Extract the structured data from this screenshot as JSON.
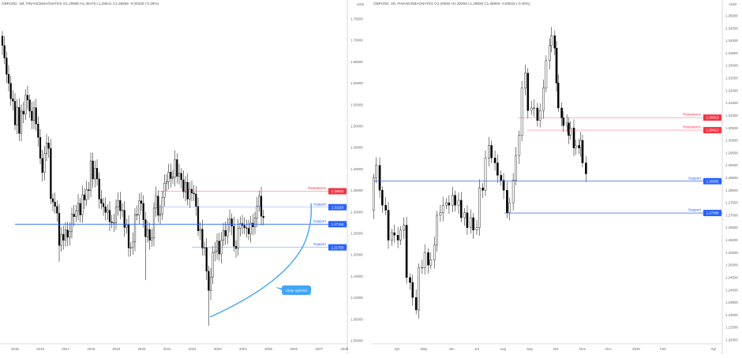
{
  "colors": {
    "up_body": "#ffffff",
    "down_body": "#000000",
    "wick": "#000000",
    "support": "#2962ff",
    "resistance": "#f23645",
    "callout": "#42a5f5",
    "axis_line": "#d0d0d0"
  },
  "chart_data": [
    {
      "type": "candlestick",
      "header": "GBPUSD, 1M, FINANCEMAGNATES  O1.29885  H1.30475  L1.28541  C1.28655  -0.00329 (-0.26%)",
      "currency_label": "USD",
      "timeframe": "monthly",
      "first_month": "2014-07",
      "first_open": 1.71,
      "closes": [
        1.688,
        1.659,
        1.621,
        1.6,
        1.564,
        1.558,
        1.503,
        1.544,
        1.483,
        1.535,
        1.528,
        1.572,
        1.561,
        1.535,
        1.513,
        1.543,
        1.505,
        1.474,
        1.425,
        1.392,
        1.436,
        1.461,
        1.448,
        1.331,
        1.323,
        1.313,
        1.297,
        1.222,
        1.248,
        1.234,
        1.258,
        1.241,
        1.255,
        1.295,
        1.289,
        1.302,
        1.32,
        1.293,
        1.34,
        1.328,
        1.352,
        1.35,
        1.419,
        1.377,
        1.402,
        1.377,
        1.33,
        1.32,
        1.312,
        1.299,
        1.304,
        1.277,
        1.275,
        1.275,
        1.311,
        1.327,
        1.303,
        1.304,
        1.264,
        1.27,
        1.216,
        1.217,
        1.23,
        1.294,
        1.293,
        1.326,
        1.32,
        1.282,
        1.242,
        1.259,
        1.234,
        1.24,
        1.309,
        1.337,
        1.292,
        1.295,
        1.334,
        1.367,
        1.37,
        1.393,
        1.378,
        1.381,
        1.422,
        1.383,
        1.39,
        1.375,
        1.347,
        1.369,
        1.33,
        1.353,
        1.344,
        1.342,
        1.313,
        1.256,
        1.26,
        1.216,
        1.217,
        1.162,
        1.117,
        1.148,
        1.205,
        1.209,
        1.232,
        1.202,
        1.234,
        1.257,
        1.244,
        1.271,
        1.284,
        1.267,
        1.22,
        1.215,
        1.262,
        1.273,
        1.269,
        1.263,
        1.262,
        1.249,
        1.274,
        1.265,
        1.286,
        1.313,
        1.337,
        1.29,
        1.2866
      ],
      "extreme_lows": {
        "2016-10": 1.184,
        "2020-03": 1.141,
        "2022-09": 1.035
      },
      "y_range": [
        1.0,
        1.75
      ],
      "y_ticks": [
        "1.75000",
        "1.70000",
        "1.65000",
        "1.60000",
        "1.55000",
        "1.50000",
        "1.45000",
        "1.40000",
        "1.35000",
        "1.30000",
        "1.25000",
        "1.20000",
        "1.15000",
        "1.10000",
        "1.05000",
        "1.00000"
      ],
      "x_ticks": [
        "2015",
        "2016",
        "2017",
        "2018",
        "2019",
        "2020",
        "2021",
        "2022",
        "2023",
        "2024",
        "2025",
        "2026",
        "2027",
        "2028"
      ],
      "levels": [
        {
          "kind": "resistance",
          "label": "Resistance",
          "price": 1.34832,
          "tag": "1.34832",
          "from": "2020-09"
        },
        {
          "kind": "support",
          "label": "Support",
          "price": 1.3111,
          "tag": "1.31110",
          "from": "2020-09"
        },
        {
          "kind": "support",
          "label": "Support",
          "price": 1.2715,
          "tag": "1.27150",
          "from": "2015-01"
        },
        {
          "kind": "support",
          "label": "Support",
          "price": 1.2175,
          "tag": "1.21750",
          "from": "2022-01"
        }
      ],
      "annotation": "Clear uptrend"
    },
    {
      "type": "candlestick",
      "header": "GBPUSD, 1D, FINANCEMAGNATES  O1.29094  H1.29259  L1.28558  C1.28655  -0.00516 (-0.40%)",
      "currency_label": "USD",
      "timeframe": "daily",
      "year": 2024,
      "first_open": 1.272,
      "points": [
        [
          "03-05",
          1.285
        ],
        [
          "03-08",
          1.29
        ],
        [
          "03-12",
          1.28
        ],
        [
          "03-15",
          1.274
        ],
        [
          "03-19",
          1.272
        ],
        [
          "03-22",
          1.26
        ],
        [
          "03-26",
          1.263
        ],
        [
          "03-29",
          1.262
        ],
        [
          "04-02",
          1.26
        ],
        [
          "04-05",
          1.264
        ],
        [
          "04-09",
          1.266
        ],
        [
          "04-12",
          1.245
        ],
        [
          "04-16",
          1.243
        ],
        [
          "04-19",
          1.237
        ],
        [
          "04-23",
          1.232
        ],
        [
          "04-26",
          1.249
        ],
        [
          "04-30",
          1.249
        ],
        [
          "05-03",
          1.255
        ],
        [
          "05-07",
          1.25
        ],
        [
          "05-10",
          1.252
        ],
        [
          "05-14",
          1.258
        ],
        [
          "05-17",
          1.27
        ],
        [
          "05-21",
          1.271
        ],
        [
          "05-24",
          1.274
        ],
        [
          "05-28",
          1.275
        ],
        [
          "05-31",
          1.274
        ],
        [
          "06-04",
          1.278
        ],
        [
          "06-07",
          1.274
        ],
        [
          "06-11",
          1.276
        ],
        [
          "06-14",
          1.269
        ],
        [
          "06-18",
          1.271
        ],
        [
          "06-21",
          1.265
        ],
        [
          "06-25",
          1.269
        ],
        [
          "06-28",
          1.264
        ],
        [
          "07-02",
          1.265
        ],
        [
          "07-05",
          1.281
        ],
        [
          "07-09",
          1.28
        ],
        [
          "07-12",
          1.293
        ],
        [
          "07-16",
          1.298
        ],
        [
          "07-19",
          1.293
        ],
        [
          "07-23",
          1.291
        ],
        [
          "07-26",
          1.286
        ],
        [
          "07-30",
          1.284
        ],
        [
          "08-02",
          1.28
        ],
        [
          "08-06",
          1.271
        ],
        [
          "08-09",
          1.275
        ],
        [
          "08-13",
          1.284
        ],
        [
          "08-16",
          1.294
        ],
        [
          "08-20",
          1.302
        ],
        [
          "08-23",
          1.321
        ],
        [
          "08-27",
          1.327
        ],
        [
          "08-30",
          1.312
        ],
        [
          "09-03",
          1.313
        ],
        [
          "09-06",
          1.313
        ],
        [
          "09-10",
          1.308
        ],
        [
          "09-13",
          1.312
        ],
        [
          "09-17",
          1.321
        ],
        [
          "09-20",
          1.332
        ],
        [
          "09-24",
          1.338
        ],
        [
          "09-26",
          1.342
        ],
        [
          "09-30",
          1.337
        ],
        [
          "10-02",
          1.323
        ],
        [
          "10-04",
          1.313
        ],
        [
          "10-08",
          1.309
        ],
        [
          "10-10",
          1.306
        ],
        [
          "10-14",
          1.307
        ],
        [
          "10-16",
          1.302
        ],
        [
          "10-18",
          1.305
        ],
        [
          "10-22",
          1.297
        ],
        [
          "10-24",
          1.298
        ],
        [
          "10-28",
          1.297
        ],
        [
          "10-30",
          1.3
        ],
        [
          "11-01",
          1.291
        ],
        [
          "11-05",
          1.2866
        ]
      ],
      "y_range": [
        1.22,
        1.35
      ],
      "y_ticks": [
        "1.35000",
        "1.34500",
        "1.34000",
        "1.33500",
        "1.33000",
        "1.32500",
        "1.32000",
        "1.31500",
        "1.31000",
        "1.30500",
        "1.30000",
        "1.29500",
        "1.29000",
        "1.28500",
        "1.28000",
        "1.27500",
        "1.27000",
        "1.26500",
        "1.26000",
        "1.25500",
        "1.25000",
        "1.24500",
        "1.24000",
        "1.23500",
        "1.23000",
        "1.22500",
        "1.22000"
      ],
      "x_ticks": [
        "Apr",
        "May",
        "Jun",
        "Jul",
        "Aug",
        "Sep",
        "Oct",
        "Nov",
        "Dec",
        "2025",
        "Feb",
        "Apr"
      ],
      "levels": [
        {
          "kind": "resistance",
          "label": "Resistance",
          "price": 1.30915,
          "tag": "1.30915",
          "from": "08-18"
        },
        {
          "kind": "resistance",
          "label": "Resistance",
          "price": 1.30412,
          "tag": "1.30412",
          "from": "08-29"
        },
        {
          "kind": "support",
          "label": "Support",
          "price": 1.28365,
          "tag": "1.28365",
          "from": "03-05"
        },
        {
          "kind": "support",
          "label": "Support",
          "price": 1.27089,
          "tag": "1.27089",
          "from": "08-03"
        }
      ]
    }
  ]
}
